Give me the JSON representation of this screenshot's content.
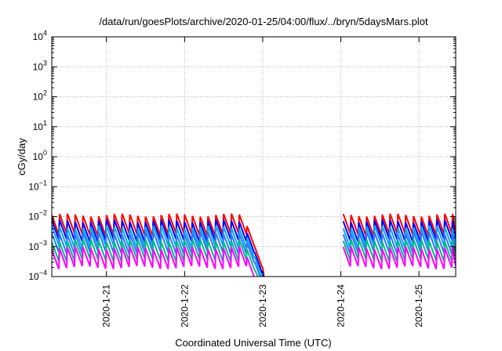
{
  "chart_data": {
    "type": "line",
    "title": "/data/run/goesPlots/archive/2020-01-25/04:00/flux/../bryn/5daysMars.plot",
    "xlabel": "Coordinated Universal Time (UTC)",
    "ylabel": "cGy/day",
    "y_scale": "log",
    "ylim_exp": [
      -4,
      4
    ],
    "y_tick_exponents": [
      -4,
      -3,
      -2,
      -1,
      0,
      1,
      2,
      3,
      4
    ],
    "xlim_days": [
      0,
      5.17
    ],
    "x_tick_labels": [
      "2020-1-21",
      "2020-1-22",
      "2020-1-23",
      "2020-1-24",
      "2020-1-25"
    ],
    "x_tick_days": [
      0.7,
      1.7,
      2.7,
      3.7,
      4.7
    ],
    "grid": true,
    "series": [
      {
        "color": "#ff0000",
        "level": -1.95,
        "segments": [
          [
            0,
            2.73
          ],
          [
            3.73,
            5.17
          ]
        ]
      },
      {
        "color": "#0000ff",
        "level": -2.15,
        "segments": [
          [
            0,
            2.73
          ],
          [
            3.73,
            5.17
          ]
        ]
      },
      {
        "color": "#00aaff",
        "level": -2.35,
        "segments": [
          [
            0,
            2.73
          ],
          [
            3.73,
            5.17
          ]
        ]
      },
      {
        "color": "#3377ee",
        "level": -2.55,
        "segments": [
          [
            0,
            2.73
          ],
          [
            3.73,
            5.17
          ]
        ]
      },
      {
        "color": "#00bb88",
        "level": -2.8,
        "segments": [
          [
            0,
            2.73
          ],
          [
            3.73,
            5.17
          ]
        ]
      },
      {
        "color": "#ff00ff",
        "level": -3.05,
        "segments": [
          [
            0,
            2.73
          ],
          [
            3.73,
            5.17
          ]
        ]
      }
    ],
    "colors": [
      "#ff0000",
      "#0000ff",
      "#00aaff",
      "#3377ee",
      "#00bb88",
      "#ff00ff"
    ]
  }
}
